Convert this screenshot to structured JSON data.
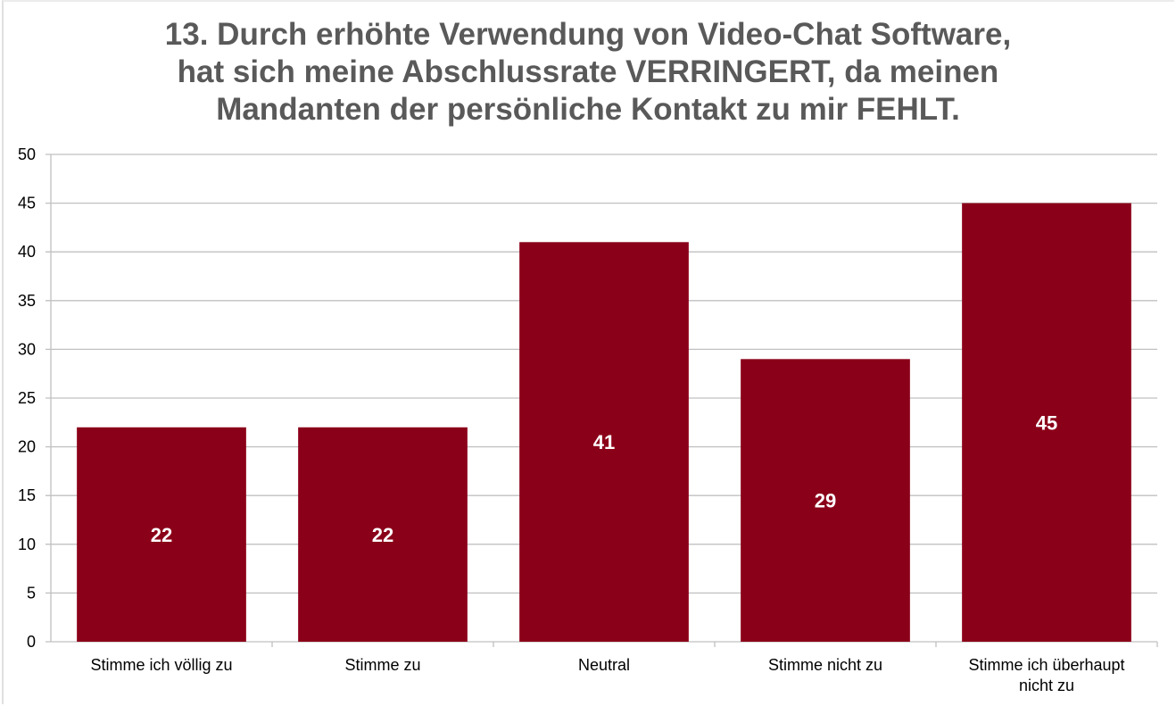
{
  "chart_data": {
    "type": "bar",
    "title_lines": [
      "13. Durch erhöhte Verwendung von Video-Chat Software,",
      "hat sich meine Abschlussrate VERRINGERT, da meinen",
      "Mandanten der persönliche Kontakt zu mir FEHLT."
    ],
    "categories": [
      [
        "Stimme ich völlig zu"
      ],
      [
        "Stimme zu"
      ],
      [
        "Neutral"
      ],
      [
        "Stimme nicht zu"
      ],
      [
        "Stimme ich überhaupt",
        "nicht zu"
      ]
    ],
    "values": [
      22,
      22,
      41,
      29,
      45
    ],
    "data_labels": [
      "22",
      "22",
      "41",
      "29",
      "45"
    ],
    "ylim": [
      0,
      50
    ],
    "yticks": [
      "0",
      "5",
      "10",
      "15",
      "20",
      "25",
      "30",
      "35",
      "40",
      "45",
      "50"
    ],
    "xlabel": "",
    "ylabel": "",
    "grid": true,
    "bar_color": "#8b0019",
    "grid_color": "#c0c0c0"
  }
}
